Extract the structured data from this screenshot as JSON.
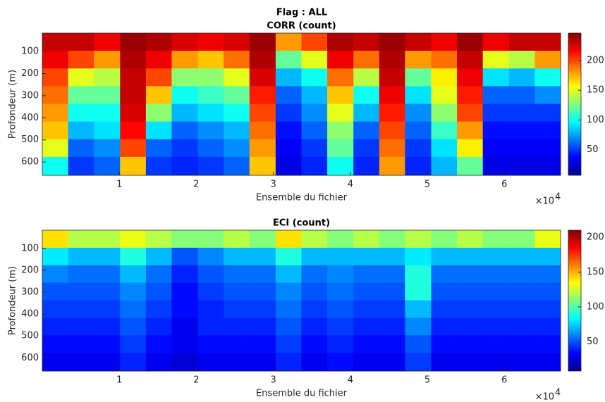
{
  "title": "Flag : ALL",
  "chart_data": [
    {
      "type": "heatmap",
      "title": "CORR (count)",
      "xlabel": "Ensemble du fichier",
      "ylabel": "Profondeur (m)",
      "x_exponent_base": "×10",
      "x_exponent": "4",
      "x": [
        0.17,
        0.5,
        0.84,
        1.18,
        1.51,
        1.85,
        2.19,
        2.52,
        2.86,
        3.2,
        3.53,
        3.87,
        4.21,
        4.54,
        4.88,
        5.22,
        5.55,
        5.89,
        6.23,
        6.56
      ],
      "y": [
        57,
        137,
        217,
        297,
        377,
        457,
        537,
        617
      ],
      "z": [
        [
          230,
          230,
          220,
          240,
          235,
          225,
          220,
          225,
          240,
          180,
          200,
          235,
          230,
          240,
          230,
          220,
          240,
          220,
          230,
          230
        ],
        [
          220,
          200,
          180,
          235,
          220,
          180,
          170,
          190,
          235,
          120,
          150,
          220,
          190,
          235,
          180,
          190,
          230,
          150,
          140,
          180
        ],
        [
          200,
          150,
          140,
          230,
          200,
          130,
          130,
          150,
          225,
          80,
          100,
          190,
          140,
          230,
          120,
          160,
          220,
          90,
          80,
          100
        ],
        [
          190,
          120,
          120,
          230,
          170,
          100,
          110,
          120,
          210,
          60,
          80,
          170,
          100,
          220,
          90,
          150,
          210,
          60,
          60,
          70
        ],
        [
          180,
          100,
          100,
          225,
          130,
          80,
          90,
          100,
          200,
          50,
          70,
          150,
          80,
          210,
          70,
          130,
          200,
          50,
          50,
          50
        ],
        [
          170,
          80,
          90,
          215,
          90,
          60,
          70,
          80,
          190,
          40,
          60,
          130,
          60,
          200,
          60,
          110,
          180,
          40,
          40,
          40
        ],
        [
          150,
          60,
          70,
          200,
          60,
          50,
          60,
          70,
          180,
          35,
          50,
          120,
          50,
          190,
          50,
          90,
          160,
          35,
          35,
          35
        ],
        [
          100,
          50,
          60,
          170,
          50,
          45,
          50,
          60,
          170,
          30,
          45,
          100,
          45,
          180,
          45,
          80,
          120,
          30,
          30,
          30
        ]
      ],
      "xlim": [
        0,
        6.73
      ],
      "xticks": [
        1,
        2,
        3,
        4,
        5,
        6
      ],
      "ylim": [
        17,
        660
      ],
      "y_reversed": true,
      "yticks": [
        100,
        200,
        300,
        400,
        500,
        600
      ],
      "clim": [
        7,
        246
      ],
      "cticks": [
        50,
        100,
        150,
        200
      ],
      "colormap": "jet"
    },
    {
      "type": "heatmap",
      "title": "ECI (count)",
      "xlabel": "Ensemble du fichier",
      "ylabel": "Profondeur (m)",
      "x_exponent_base": "×10",
      "x_exponent": "4",
      "x": [
        0.17,
        0.5,
        0.84,
        1.18,
        1.51,
        1.85,
        2.19,
        2.52,
        2.86,
        3.2,
        3.53,
        3.87,
        4.21,
        4.54,
        4.88,
        5.22,
        5.55,
        5.89,
        6.23,
        6.56
      ],
      "y": [
        57,
        137,
        217,
        297,
        377,
        457,
        537,
        617
      ],
      "z": [
        [
          140,
          120,
          120,
          130,
          120,
          110,
          110,
          120,
          110,
          140,
          120,
          110,
          120,
          110,
          120,
          110,
          120,
          110,
          110,
          130
        ],
        [
          80,
          70,
          70,
          90,
          70,
          50,
          60,
          70,
          70,
          90,
          70,
          70,
          70,
          70,
          80,
          70,
          70,
          70,
          70,
          70
        ],
        [
          60,
          55,
          55,
          70,
          55,
          40,
          50,
          55,
          55,
          70,
          55,
          60,
          55,
          55,
          90,
          55,
          55,
          55,
          55,
          55
        ],
        [
          50,
          50,
          50,
          60,
          50,
          35,
          45,
          50,
          50,
          60,
          50,
          55,
          50,
          50,
          90,
          50,
          50,
          50,
          50,
          50
        ],
        [
          45,
          45,
          45,
          55,
          45,
          35,
          40,
          45,
          45,
          55,
          45,
          50,
          45,
          45,
          70,
          45,
          45,
          45,
          45,
          45
        ],
        [
          40,
          40,
          40,
          50,
          40,
          30,
          40,
          40,
          40,
          50,
          40,
          45,
          40,
          40,
          60,
          40,
          40,
          40,
          40,
          40
        ],
        [
          35,
          35,
          35,
          45,
          35,
          30,
          35,
          35,
          35,
          45,
          35,
          40,
          35,
          35,
          50,
          35,
          35,
          35,
          35,
          35
        ],
        [
          30,
          30,
          30,
          40,
          30,
          25,
          30,
          30,
          30,
          40,
          30,
          35,
          30,
          30,
          45,
          30,
          30,
          30,
          30,
          30
        ]
      ],
      "xlim": [
        0,
        6.73
      ],
      "xticks": [
        1,
        2,
        3,
        4,
        5,
        6
      ],
      "ylim": [
        17,
        660
      ],
      "y_reversed": true,
      "yticks": [
        100,
        200,
        300,
        400,
        500,
        600
      ],
      "clim": [
        8,
        210
      ],
      "cticks": [
        50,
        100,
        150,
        200
      ],
      "colormap": "jet"
    }
  ]
}
